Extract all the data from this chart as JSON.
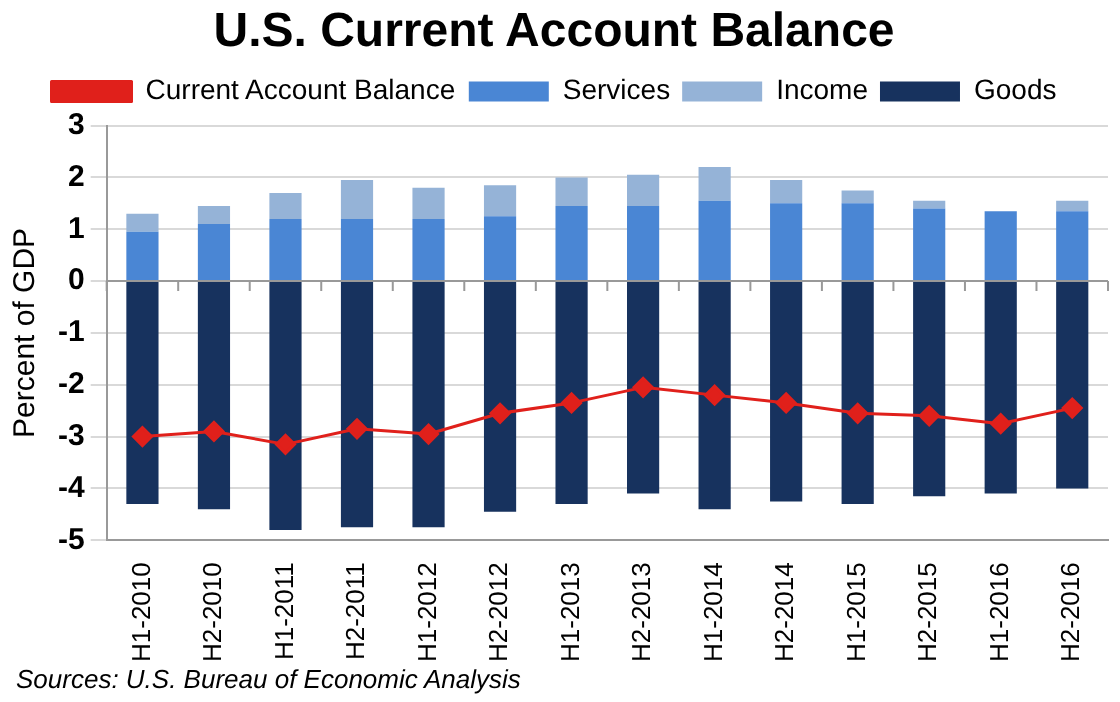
{
  "chart_data": {
    "type": "bar",
    "title": "U.S. Current Account Balance",
    "ylabel": "Percent of GDP",
    "categories": [
      "H1-2010",
      "H2-2010",
      "H1-2011",
      "H2-2011",
      "H1-2012",
      "H2-2012",
      "H1-2013",
      "H2-2013",
      "H1-2014",
      "H2-2014",
      "H1-2015",
      "H2-2015",
      "H1-2016",
      "H2-2016"
    ],
    "stacked": true,
    "series": [
      {
        "name": "Services",
        "color": "#4a86d4",
        "values": [
          0.95,
          1.1,
          1.2,
          1.2,
          1.2,
          1.25,
          1.45,
          1.45,
          1.55,
          1.5,
          1.5,
          1.4,
          1.35,
          1.35
        ]
      },
      {
        "name": "Income",
        "color": "#95b3d7",
        "values": [
          0.35,
          0.35,
          0.5,
          0.75,
          0.6,
          0.6,
          0.55,
          0.6,
          0.65,
          0.45,
          0.25,
          0.15,
          0,
          0.2
        ]
      },
      {
        "name": "Goods",
        "color": "#17325e",
        "values": [
          -4.3,
          -4.4,
          -4.8,
          -4.75,
          -4.75,
          -4.45,
          -4.3,
          -4.1,
          -4.4,
          -4.25,
          -4.3,
          -4.15,
          -4.1,
          -4.0
        ]
      },
      {
        "name": "Current Account Balance",
        "type": "line",
        "color": "#e0201b",
        "marker": "diamond",
        "line_style": "solid",
        "values": [
          -3.0,
          -2.9,
          -3.15,
          -2.85,
          -2.95,
          -2.55,
          -2.35,
          -2.05,
          -2.2,
          -2.35,
          -2.55,
          -2.6,
          -2.75,
          -2.45
        ]
      }
    ],
    "ylim": [
      -5,
      3
    ],
    "yticks": [
      -5,
      -4,
      -3,
      -2,
      -1,
      0,
      1,
      2,
      3
    ],
    "grid": "y",
    "legend": "top",
    "annotations": [
      "Sources: U.S. Bureau of Economic Analysis"
    ]
  }
}
